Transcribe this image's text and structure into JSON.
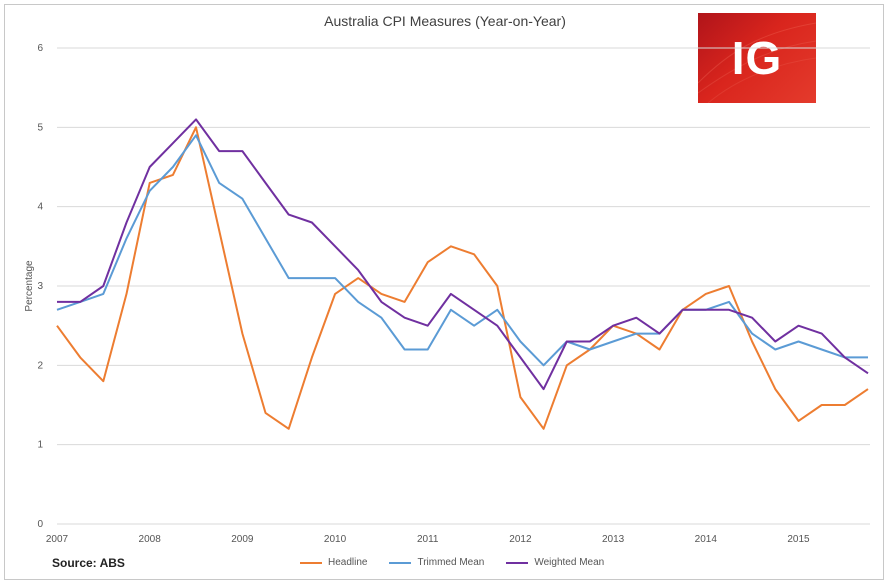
{
  "chart_data": {
    "type": "line",
    "title": "Australia CPI Measures (Year-on-Year)",
    "xlabel": "",
    "ylabel": "Percentage",
    "ylim": [
      0,
      6
    ],
    "yticks": [
      "0",
      "1",
      "2",
      "3",
      "4",
      "5",
      "6"
    ],
    "x_tick_labels": [
      "2007",
      "2008",
      "2009",
      "2010",
      "2011",
      "2012",
      "2013",
      "2014",
      "2015"
    ],
    "grid": "horizontal",
    "legend_position": "bottom",
    "source": "Source: ABS",
    "x": [
      2007.0,
      2007.25,
      2007.5,
      2007.75,
      2008.0,
      2008.25,
      2008.5,
      2008.75,
      2009.0,
      2009.25,
      2009.5,
      2009.75,
      2010.0,
      2010.25,
      2010.5,
      2010.75,
      2011.0,
      2011.25,
      2011.5,
      2011.75,
      2012.0,
      2012.25,
      2012.5,
      2012.75,
      2013.0,
      2013.25,
      2013.5,
      2013.75,
      2014.0,
      2014.25,
      2014.5,
      2014.75,
      2015.0,
      2015.25,
      2015.5,
      2015.75
    ],
    "series": [
      {
        "name": "Headline",
        "color": "#ed7d31",
        "values": [
          2.5,
          2.1,
          1.8,
          2.9,
          4.3,
          4.4,
          5.0,
          3.7,
          2.4,
          1.4,
          1.2,
          2.1,
          2.9,
          3.1,
          2.9,
          2.8,
          3.3,
          3.5,
          3.4,
          3.0,
          1.6,
          1.2,
          2.0,
          2.2,
          2.5,
          2.4,
          2.2,
          2.7,
          2.9,
          3.0,
          2.3,
          1.7,
          1.3,
          1.5,
          1.5,
          1.7
        ]
      },
      {
        "name": "Trimmed Mean",
        "color": "#5b9bd5",
        "values": [
          2.7,
          2.8,
          2.9,
          3.6,
          4.2,
          4.5,
          4.9,
          4.3,
          4.1,
          3.6,
          3.1,
          3.1,
          3.1,
          2.8,
          2.6,
          2.2,
          2.2,
          2.7,
          2.5,
          2.7,
          2.3,
          2.0,
          2.3,
          2.2,
          2.3,
          2.4,
          2.4,
          2.7,
          2.7,
          2.8,
          2.4,
          2.2,
          2.3,
          2.2,
          2.1,
          2.1
        ]
      },
      {
        "name": "Weighted Mean",
        "color": "#7030a0",
        "values": [
          2.8,
          2.8,
          3.0,
          3.8,
          4.5,
          4.8,
          5.1,
          4.7,
          4.7,
          4.3,
          3.9,
          3.8,
          3.5,
          3.2,
          2.8,
          2.6,
          2.5,
          2.9,
          2.7,
          2.5,
          2.1,
          1.7,
          2.3,
          2.3,
          2.5,
          2.6,
          2.4,
          2.7,
          2.7,
          2.7,
          2.6,
          2.3,
          2.5,
          2.4,
          2.1,
          1.9
        ]
      }
    ]
  },
  "logo": {
    "text": "IG"
  }
}
